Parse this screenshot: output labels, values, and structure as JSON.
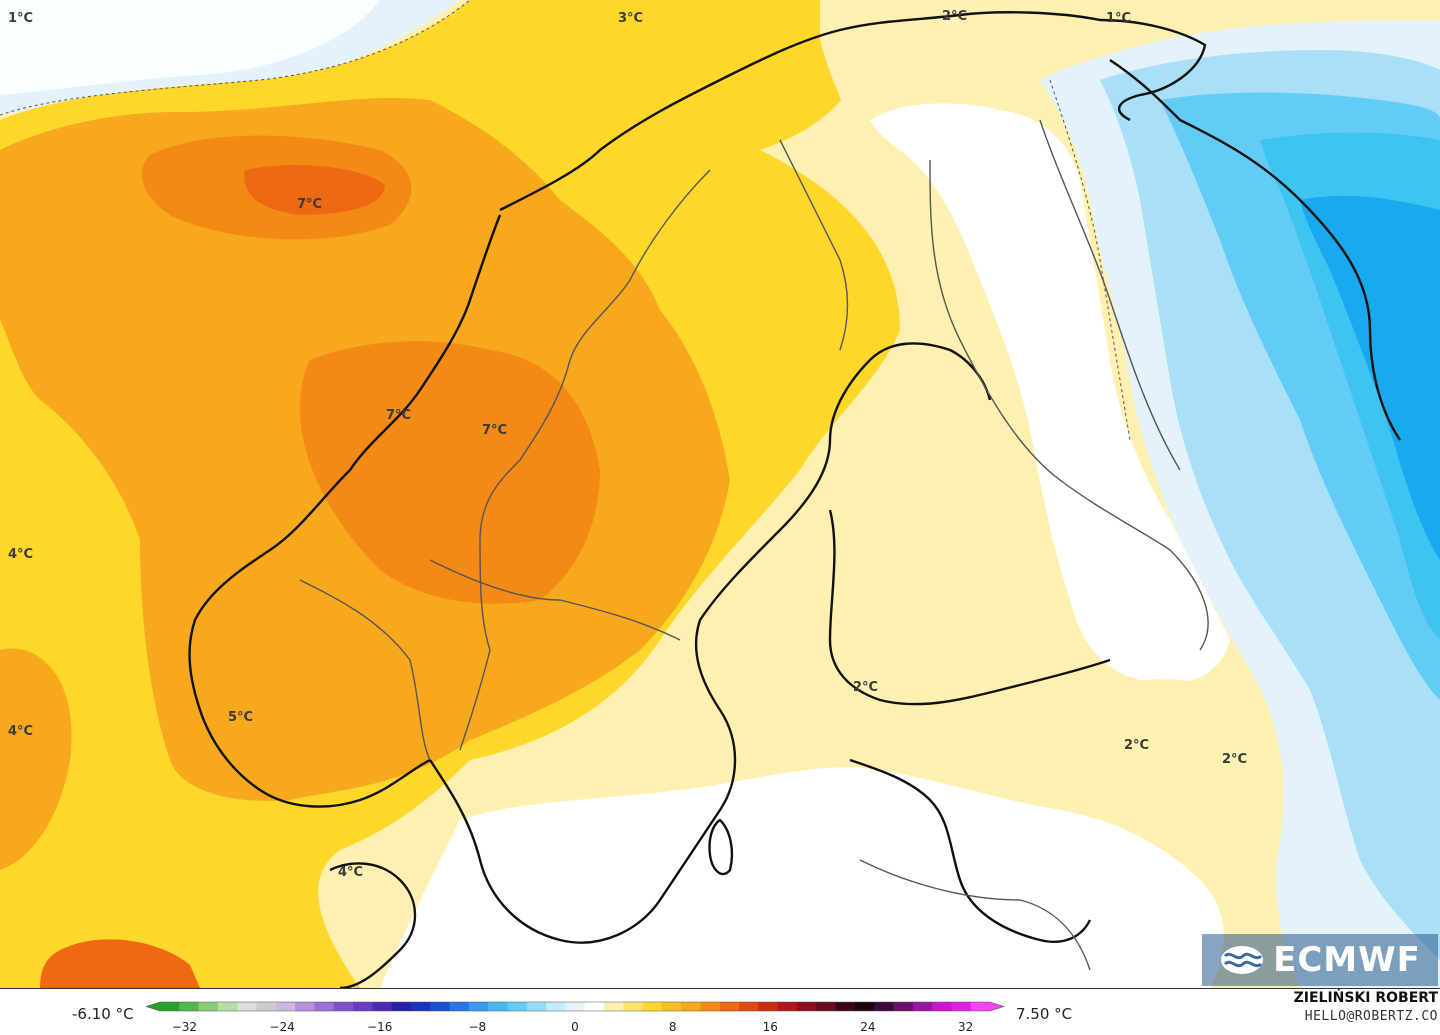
{
  "map": {
    "temperature_labels": [
      {
        "id": "t1",
        "text": "1°C"
      },
      {
        "id": "t2",
        "text": "3°C"
      },
      {
        "id": "t3",
        "text": "2°C"
      },
      {
        "id": "t4",
        "text": "1°C"
      },
      {
        "id": "t5",
        "text": "7°C"
      },
      {
        "id": "t6",
        "text": "7°C"
      },
      {
        "id": "t7",
        "text": "7°C"
      },
      {
        "id": "t8",
        "text": "4°C"
      },
      {
        "id": "t9",
        "text": "4°C"
      },
      {
        "id": "t10",
        "text": "5°C"
      },
      {
        "id": "t11",
        "text": "2°C"
      },
      {
        "id": "t12",
        "text": "2°C"
      },
      {
        "id": "t13",
        "text": "2°C"
      },
      {
        "id": "t14",
        "text": "4°C"
      }
    ],
    "colors": {
      "deep_orange": "#f07f14",
      "orange": "#f7a81c",
      "yellow": "#fed72a",
      "pale_yellow": "#fdf0b0",
      "white": "#ffffff",
      "pale_blue": "#e4f3fb",
      "light_blue": "#a9e0f7",
      "blue": "#3ec4f3",
      "deep_blue": "#18a9ee"
    }
  },
  "logo": {
    "text": "ECMWF",
    "icon": "ecmwf-wave-icon"
  },
  "legend": {
    "min_label": "-6.10 °C",
    "max_label": "7.50 °C",
    "ticks": [
      "−32",
      "−24",
      "−16",
      "−8",
      "0",
      "8",
      "16",
      "24",
      "32"
    ],
    "tick_values": [
      -32,
      -24,
      -16,
      -8,
      0,
      8,
      16,
      24,
      32
    ],
    "range": [
      -34,
      34
    ],
    "colors": [
      "#2aa02a",
      "#56b64e",
      "#86cc78",
      "#b3dea7",
      "#dcdcdc",
      "#cccccc",
      "#c9b7dc",
      "#b491d8",
      "#9c6fd4",
      "#8151cc",
      "#6a3cc4",
      "#4c2cb4",
      "#2a20a8",
      "#1a30c0",
      "#1d4fd6",
      "#2a74e6",
      "#3c98ef",
      "#47b7f3",
      "#62ccf6",
      "#92dcf8",
      "#c4ecfb",
      "#e4f3fb",
      "#ffffff",
      "#fdf0b0",
      "#fee36a",
      "#fed72a",
      "#fbbf22",
      "#f7a81c",
      "#f38a16",
      "#ee6a12",
      "#e3470f",
      "#cc2a12",
      "#b2161a",
      "#8c0e1c",
      "#6a0a20",
      "#3c061a",
      "#1a0410",
      "#3a0a3a",
      "#6a0e6a",
      "#9a12a0",
      "#c616c8",
      "#e01ee2",
      "#f046f0"
    ]
  },
  "credit": {
    "name": "ZIELIŃSKI ROBERT",
    "email": "HELLO@ROBERTZ.CO"
  }
}
